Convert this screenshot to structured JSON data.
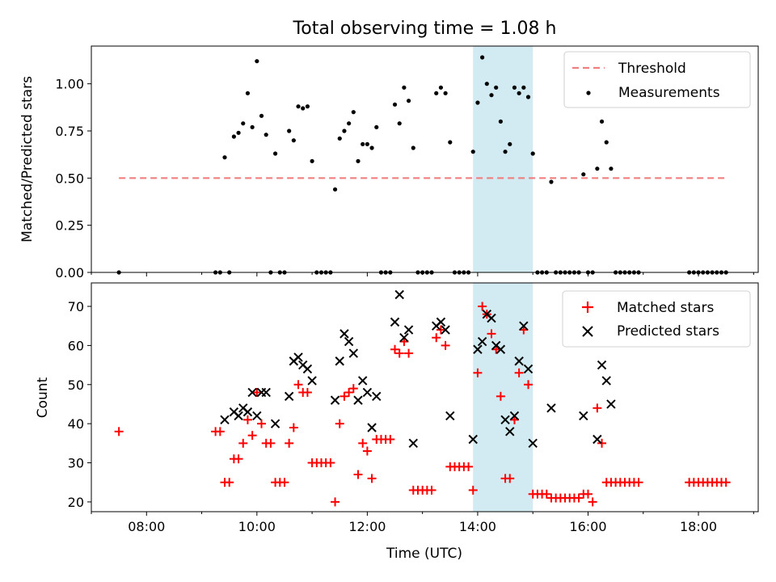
{
  "figure_title": "Total observing time = 1.08 h",
  "x_axis": {
    "label": "Time (UTC)",
    "range": [
      "07:00",
      "19:05"
    ],
    "ticks": [
      "08:00",
      "10:00",
      "12:00",
      "14:00",
      "16:00",
      "18:00"
    ]
  },
  "highlight_band": {
    "start": "13:55",
    "end": "15:00",
    "color": "#add8e6"
  },
  "chart_data": [
    {
      "type": "scatter",
      "ylabel": "Matched/Predicted stars",
      "ylim": [
        0,
        1.2
      ],
      "y_ticks": [
        "0.00",
        "0.25",
        "0.50",
        "0.75",
        "1.00"
      ],
      "legend_position": "top-right",
      "threshold": {
        "name": "Threshold",
        "value": 0.5,
        "x_range": [
          "07:30",
          "18:30"
        ],
        "color": "#f08080",
        "style": "dashed"
      },
      "series": [
        {
          "name": "Measurements",
          "color": "#000000",
          "points": [
            [
              "07:30",
              0.0
            ],
            [
              "09:15",
              0.0
            ],
            [
              "09:20",
              0.0
            ],
            [
              "09:25",
              0.61
            ],
            [
              "09:30",
              0.0
            ],
            [
              "09:35",
              0.72
            ],
            [
              "09:40",
              0.74
            ],
            [
              "09:45",
              0.79
            ],
            [
              "09:50",
              0.95
            ],
            [
              "09:55",
              0.77
            ],
            [
              "10:00",
              1.12
            ],
            [
              "10:05",
              0.83
            ],
            [
              "10:10",
              0.73
            ],
            [
              "10:15",
              0.0
            ],
            [
              "10:20",
              0.63
            ],
            [
              "10:25",
              0.0
            ],
            [
              "10:30",
              0.0
            ],
            [
              "10:35",
              0.75
            ],
            [
              "10:40",
              0.7
            ],
            [
              "10:45",
              0.88
            ],
            [
              "10:50",
              0.87
            ],
            [
              "10:55",
              0.88
            ],
            [
              "11:00",
              0.59
            ],
            [
              "11:05",
              0.0
            ],
            [
              "11:10",
              0.0
            ],
            [
              "11:15",
              0.0
            ],
            [
              "11:20",
              0.0
            ],
            [
              "11:25",
              0.44
            ],
            [
              "11:30",
              0.71
            ],
            [
              "11:35",
              0.75
            ],
            [
              "11:40",
              0.79
            ],
            [
              "11:45",
              0.85
            ],
            [
              "11:50",
              0.59
            ],
            [
              "11:55",
              0.68
            ],
            [
              "12:00",
              0.68
            ],
            [
              "12:05",
              0.66
            ],
            [
              "12:10",
              0.77
            ],
            [
              "12:15",
              0.0
            ],
            [
              "12:20",
              0.0
            ],
            [
              "12:25",
              0.0
            ],
            [
              "12:30",
              0.89
            ],
            [
              "12:35",
              0.79
            ],
            [
              "12:40",
              0.98
            ],
            [
              "12:45",
              0.91
            ],
            [
              "12:50",
              0.66
            ],
            [
              "12:55",
              0.0
            ],
            [
              "13:00",
              0.0
            ],
            [
              "13:05",
              0.0
            ],
            [
              "13:10",
              0.0
            ],
            [
              "13:15",
              0.95
            ],
            [
              "13:20",
              0.98
            ],
            [
              "13:25",
              0.95
            ],
            [
              "13:30",
              0.69
            ],
            [
              "13:35",
              0.0
            ],
            [
              "13:40",
              0.0
            ],
            [
              "13:45",
              0.0
            ],
            [
              "13:50",
              0.0
            ],
            [
              "13:55",
              0.64
            ],
            [
              "14:00",
              0.9
            ],
            [
              "14:05",
              1.14
            ],
            [
              "14:10",
              1.0
            ],
            [
              "14:15",
              0.94
            ],
            [
              "14:20",
              0.98
            ],
            [
              "14:25",
              0.8
            ],
            [
              "14:30",
              0.64
            ],
            [
              "14:35",
              0.68
            ],
            [
              "14:40",
              0.98
            ],
            [
              "14:45",
              0.95
            ],
            [
              "14:50",
              0.98
            ],
            [
              "14:55",
              0.93
            ],
            [
              "15:00",
              0.63
            ],
            [
              "15:05",
              0.0
            ],
            [
              "15:10",
              0.0
            ],
            [
              "15:15",
              0.0
            ],
            [
              "15:20",
              0.48
            ],
            [
              "15:25",
              0.0
            ],
            [
              "15:30",
              0.0
            ],
            [
              "15:35",
              0.0
            ],
            [
              "15:40",
              0.0
            ],
            [
              "15:45",
              0.0
            ],
            [
              "15:50",
              0.0
            ],
            [
              "15:55",
              0.52
            ],
            [
              "16:00",
              0.0
            ],
            [
              "16:05",
              0.0
            ],
            [
              "16:10",
              0.55
            ],
            [
              "16:15",
              0.8
            ],
            [
              "16:20",
              0.69
            ],
            [
              "16:25",
              0.55
            ],
            [
              "16:30",
              0.0
            ],
            [
              "16:35",
              0.0
            ],
            [
              "16:40",
              0.0
            ],
            [
              "16:45",
              0.0
            ],
            [
              "16:50",
              0.0
            ],
            [
              "16:55",
              0.0
            ],
            [
              "17:50",
              0.0
            ],
            [
              "17:55",
              0.0
            ],
            [
              "18:00",
              0.0
            ],
            [
              "18:05",
              0.0
            ],
            [
              "18:10",
              0.0
            ],
            [
              "18:15",
              0.0
            ],
            [
              "18:20",
              0.0
            ],
            [
              "18:25",
              0.0
            ],
            [
              "18:30",
              0.0
            ]
          ]
        }
      ]
    },
    {
      "type": "scatter",
      "ylabel": "Count",
      "ylim": [
        17.5,
        76
      ],
      "y_ticks": [
        "20",
        "30",
        "40",
        "50",
        "60",
        "70"
      ],
      "legend_position": "top-right",
      "series": [
        {
          "name": "Matched stars",
          "marker": "plus",
          "color": "#ff0000",
          "points": [
            [
              "07:30",
              38
            ],
            [
              "09:15",
              38
            ],
            [
              "09:20",
              38
            ],
            [
              "09:25",
              25
            ],
            [
              "09:30",
              25
            ],
            [
              "09:35",
              31
            ],
            [
              "09:40",
              31
            ],
            [
              "09:45",
              35
            ],
            [
              "09:50",
              41
            ],
            [
              "09:55",
              37
            ],
            [
              "10:00",
              48
            ],
            [
              "10:05",
              40
            ],
            [
              "10:10",
              35
            ],
            [
              "10:15",
              35
            ],
            [
              "10:20",
              25
            ],
            [
              "10:25",
              25
            ],
            [
              "10:30",
              25
            ],
            [
              "10:35",
              35
            ],
            [
              "10:40",
              39
            ],
            [
              "10:45",
              50
            ],
            [
              "10:50",
              48
            ],
            [
              "10:55",
              48
            ],
            [
              "11:00",
              30
            ],
            [
              "11:05",
              30
            ],
            [
              "11:10",
              30
            ],
            [
              "11:15",
              30
            ],
            [
              "11:20",
              30
            ],
            [
              "11:25",
              20
            ],
            [
              "11:30",
              40
            ],
            [
              "11:35",
              47
            ],
            [
              "11:40",
              48
            ],
            [
              "11:45",
              49
            ],
            [
              "11:50",
              27
            ],
            [
              "11:55",
              35
            ],
            [
              "12:00",
              33
            ],
            [
              "12:05",
              26
            ],
            [
              "12:10",
              36
            ],
            [
              "12:15",
              36
            ],
            [
              "12:20",
              36
            ],
            [
              "12:25",
              36
            ],
            [
              "12:30",
              59
            ],
            [
              "12:35",
              58
            ],
            [
              "12:40",
              61
            ],
            [
              "12:45",
              58
            ],
            [
              "12:50",
              23
            ],
            [
              "12:55",
              23
            ],
            [
              "13:00",
              23
            ],
            [
              "13:05",
              23
            ],
            [
              "13:10",
              23
            ],
            [
              "13:15",
              62
            ],
            [
              "13:20",
              64
            ],
            [
              "13:25",
              60
            ],
            [
              "13:30",
              29
            ],
            [
              "13:35",
              29
            ],
            [
              "13:40",
              29
            ],
            [
              "13:45",
              29
            ],
            [
              "13:50",
              29
            ],
            [
              "13:55",
              23
            ],
            [
              "14:00",
              53
            ],
            [
              "14:05",
              70
            ],
            [
              "14:10",
              68
            ],
            [
              "14:15",
              63
            ],
            [
              "14:20",
              59
            ],
            [
              "14:25",
              47
            ],
            [
              "14:30",
              26
            ],
            [
              "14:35",
              26
            ],
            [
              "14:40",
              41
            ],
            [
              "14:45",
              53
            ],
            [
              "14:50",
              64
            ],
            [
              "14:55",
              50
            ],
            [
              "15:00",
              22
            ],
            [
              "15:05",
              22
            ],
            [
              "15:10",
              22
            ],
            [
              "15:15",
              22
            ],
            [
              "15:20",
              21
            ],
            [
              "15:25",
              21
            ],
            [
              "15:30",
              21
            ],
            [
              "15:35",
              21
            ],
            [
              "15:40",
              21
            ],
            [
              "15:45",
              21
            ],
            [
              "15:50",
              21
            ],
            [
              "15:55",
              22
            ],
            [
              "16:00",
              22
            ],
            [
              "16:05",
              20
            ],
            [
              "16:10",
              44
            ],
            [
              "16:15",
              35
            ],
            [
              "16:20",
              25
            ],
            [
              "16:25",
              25
            ],
            [
              "16:30",
              25
            ],
            [
              "16:35",
              25
            ],
            [
              "16:40",
              25
            ],
            [
              "16:45",
              25
            ],
            [
              "16:50",
              25
            ],
            [
              "16:55",
              25
            ],
            [
              "17:50",
              25
            ],
            [
              "17:55",
              25
            ],
            [
              "18:00",
              25
            ],
            [
              "18:05",
              25
            ],
            [
              "18:10",
              25
            ],
            [
              "18:15",
              25
            ],
            [
              "18:20",
              25
            ],
            [
              "18:25",
              25
            ],
            [
              "18:30",
              25
            ]
          ]
        },
        {
          "name": "Predicted stars",
          "marker": "x",
          "color": "#000000",
          "points": [
            [
              "09:25",
              41
            ],
            [
              "09:35",
              43
            ],
            [
              "09:40",
              42
            ],
            [
              "09:45",
              44
            ],
            [
              "09:50",
              43
            ],
            [
              "09:55",
              48
            ],
            [
              "10:00",
              42
            ],
            [
              "10:05",
              48
            ],
            [
              "10:10",
              48
            ],
            [
              "10:20",
              40
            ],
            [
              "10:35",
              47
            ],
            [
              "10:40",
              56
            ],
            [
              "10:45",
              57
            ],
            [
              "10:50",
              55
            ],
            [
              "10:55",
              54
            ],
            [
              "11:00",
              51
            ],
            [
              "11:25",
              46
            ],
            [
              "11:30",
              56
            ],
            [
              "11:35",
              63
            ],
            [
              "11:40",
              61
            ],
            [
              "11:45",
              58
            ],
            [
              "11:50",
              46
            ],
            [
              "11:55",
              51
            ],
            [
              "12:00",
              48
            ],
            [
              "12:05",
              39
            ],
            [
              "12:10",
              47
            ],
            [
              "12:30",
              66
            ],
            [
              "12:35",
              73
            ],
            [
              "12:40",
              62
            ],
            [
              "12:45",
              64
            ],
            [
              "12:50",
              35
            ],
            [
              "13:15",
              65
            ],
            [
              "13:20",
              66
            ],
            [
              "13:25",
              64
            ],
            [
              "13:30",
              42
            ],
            [
              "13:55",
              36
            ],
            [
              "14:00",
              59
            ],
            [
              "14:05",
              61
            ],
            [
              "14:10",
              68
            ],
            [
              "14:15",
              67
            ],
            [
              "14:20",
              60
            ],
            [
              "14:25",
              59
            ],
            [
              "14:30",
              41
            ],
            [
              "14:35",
              38
            ],
            [
              "14:40",
              42
            ],
            [
              "14:45",
              56
            ],
            [
              "14:50",
              65
            ],
            [
              "14:55",
              54
            ],
            [
              "15:00",
              35
            ],
            [
              "15:20",
              44
            ],
            [
              "15:55",
              42
            ],
            [
              "16:10",
              36
            ],
            [
              "16:15",
              55
            ],
            [
              "16:20",
              51
            ],
            [
              "16:25",
              45
            ]
          ]
        }
      ]
    }
  ]
}
